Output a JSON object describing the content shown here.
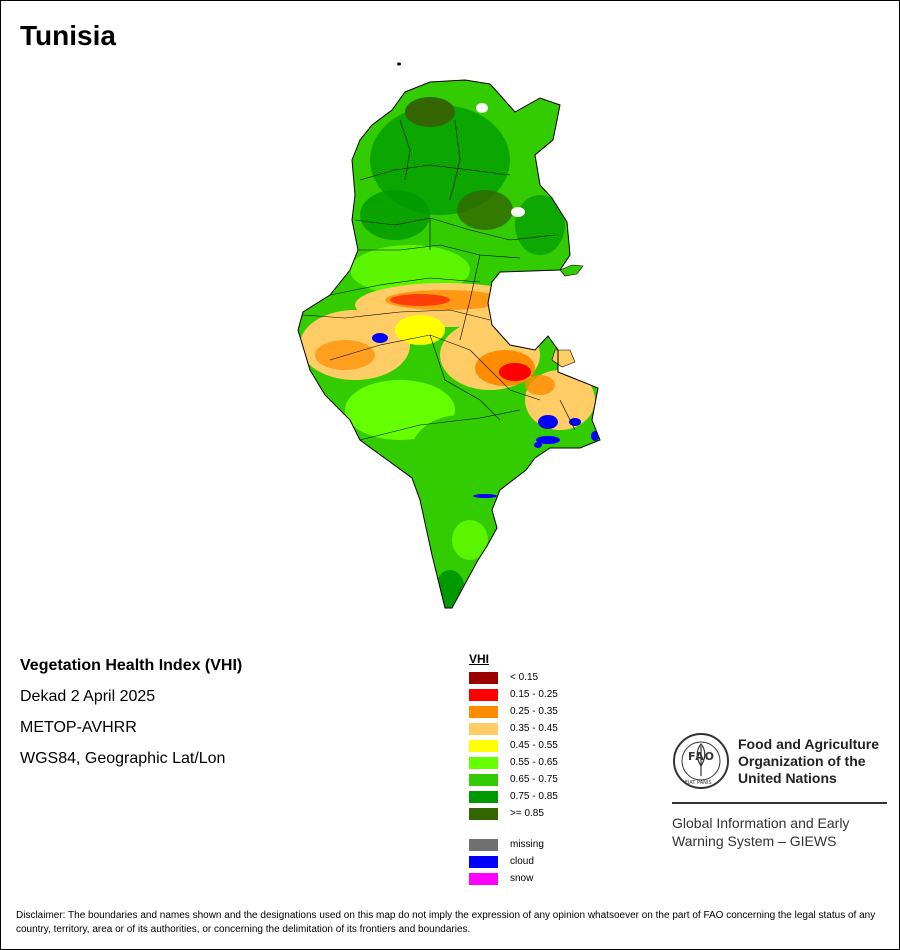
{
  "title": "Tunisia",
  "info": {
    "heading": "Vegetation Health Index (VHI)",
    "dekad": "Dekad 2 April 2025",
    "sensor": "METOP-AVHRR",
    "projection": "WGS84, Geographic Lat/Lon"
  },
  "legend": {
    "title": "VHI",
    "classes": [
      {
        "label": "< 0.15",
        "color": "#990000"
      },
      {
        "label": "0.15 - 0.25",
        "color": "#ff0000"
      },
      {
        "label": "0.25 - 0.35",
        "color": "#ff8c00"
      },
      {
        "label": "0.35 - 0.45",
        "color": "#ffcc66"
      },
      {
        "label": "0.45 - 0.55",
        "color": "#ffff00"
      },
      {
        "label": "0.55 - 0.65",
        "color": "#66ff00"
      },
      {
        "label": "0.65 - 0.75",
        "color": "#33cc00"
      },
      {
        "label": "0.75 - 0.85",
        "color": "#009900"
      },
      {
        "label": ">= 0.85",
        "color": "#336600"
      }
    ],
    "special": [
      {
        "label": "missing",
        "color": "#707070"
      },
      {
        "label": "cloud",
        "color": "#0000ff"
      },
      {
        "label": "snow",
        "color": "#ff00ff"
      }
    ]
  },
  "organization": {
    "logo_text": "FAO",
    "logo_motto": "FIAT PANIS",
    "name_lines": [
      "Food and Agriculture",
      "Organization of the",
      "United Nations"
    ],
    "program_lines": [
      "Global Information and Early",
      "Warning System – GIEWS"
    ]
  },
  "disclaimer": "Disclaimer: The boundaries and names shown and the designations used on this map do not imply the expression of any opinion whatsoever on the part of FAO concerning the legal status of any country, territory, area or of its authorities, or concerning the delimitation of its frontiers and boundaries."
}
